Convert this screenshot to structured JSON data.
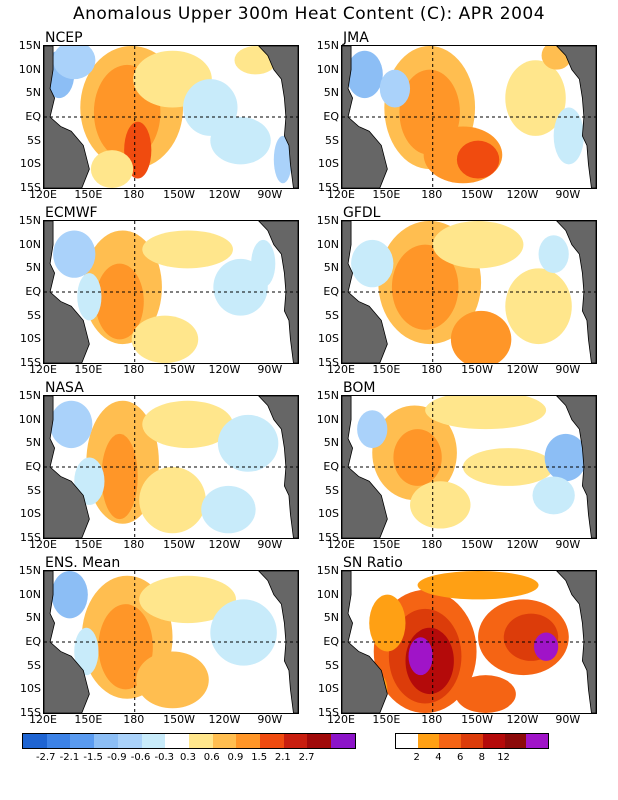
{
  "title": "Anomalous Upper 300m Heat Content (C): APR 2004",
  "y_ticks": [
    "15N",
    "10N",
    "5N",
    "EQ",
    "5S",
    "10S",
    "15S"
  ],
  "x_ticks": [
    "120E",
    "150E",
    "180",
    "150W",
    "120W",
    "90W"
  ],
  "panels": [
    {
      "name": "NCEP",
      "pattern": "ncep"
    },
    {
      "name": "JMA",
      "pattern": "jma"
    },
    {
      "name": "ECMWF",
      "pattern": "ecmwf"
    },
    {
      "name": "GFDL",
      "pattern": "gfdl"
    },
    {
      "name": "NASA",
      "pattern": "nasa"
    },
    {
      "name": "BOM",
      "pattern": "bom"
    },
    {
      "name": "ENS. Mean",
      "pattern": "ens"
    },
    {
      "name": "SN Ratio",
      "pattern": "sn"
    }
  ],
  "anomaly_colorbar": {
    "colors": [
      "#1e64d2",
      "#3c82e6",
      "#5a9bf0",
      "#8cbef5",
      "#aad2fa",
      "#c8ebfa",
      "#ffffff",
      "#ffe68c",
      "#ffbe50",
      "#ff9628",
      "#f04b0f",
      "#c81e0f",
      "#a00a0a",
      "#8c14c8"
    ],
    "labels": [
      "-2.7",
      "-2.1",
      "-1.5",
      "-0.9",
      "-0.6",
      "-0.3",
      "0.3",
      "0.6",
      "0.9",
      "1.5",
      "2.1",
      "2.7"
    ]
  },
  "sn_colorbar": {
    "colors": [
      "#ffffff",
      "#ffa014",
      "#f56414",
      "#dc3c0a",
      "#b40a0a",
      "#8c0a0a",
      "#a014c8"
    ],
    "labels": [
      "2",
      "4",
      "6",
      "8",
      "12"
    ]
  }
}
